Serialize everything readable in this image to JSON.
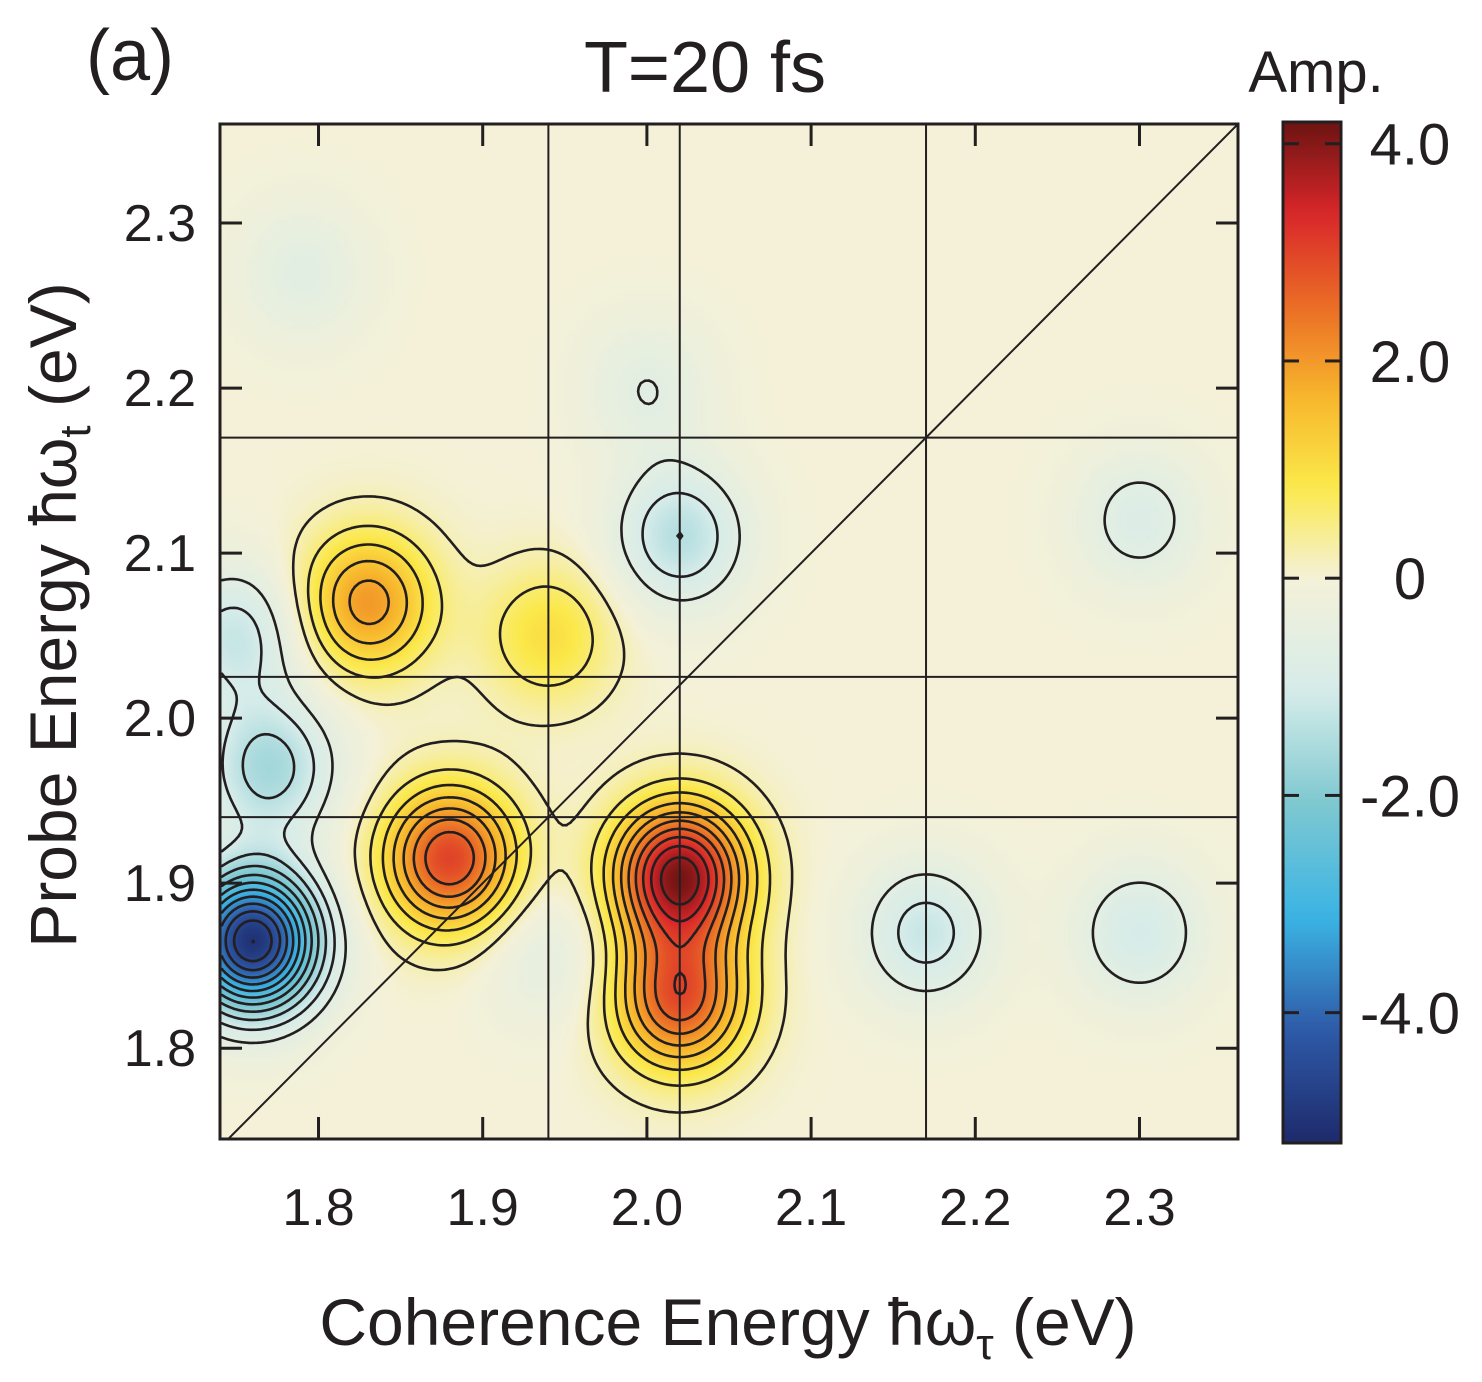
{
  "chart_data": {
    "type": "heatmap",
    "panel_label": "(a)",
    "title": "T=20 fs",
    "xlabel": "Coherence Energy ħω",
    "xlabel_sub": "τ",
    "xlabel_unit": " (eV)",
    "ylabel": "Probe Energy ħω",
    "ylabel_sub": "t",
    "ylabel_unit": " (eV)",
    "xlim": [
      1.74,
      2.36
    ],
    "ylim": [
      1.745,
      2.36
    ],
    "x_ticks": [
      1.8,
      1.9,
      2.0,
      2.1,
      2.2,
      2.3
    ],
    "x_tick_labels": [
      "1.8",
      "1.9",
      "2.0",
      "2.1",
      "2.2",
      "2.3"
    ],
    "y_ticks": [
      1.8,
      1.9,
      2.0,
      2.1,
      2.2,
      2.3
    ],
    "y_tick_labels": [
      "1.8",
      "1.9",
      "2.0",
      "2.1",
      "2.2",
      "2.3"
    ],
    "colorbar": {
      "label": "Amp.",
      "range": [
        -5.2,
        4.2
      ],
      "ticks": [
        4.0,
        2.0,
        0,
        -2.0,
        -4.0
      ],
      "tick_labels": [
        "4.0",
        "2.0",
        "0",
        "-2.0",
        "-4.0"
      ],
      "colormap": [
        "#1e2a6b",
        "#2e5aa8",
        "#3bb4e4",
        "#7ec8d0",
        "#d6ecea",
        "#f4f1d8",
        "#fbe94a",
        "#f7b52c",
        "#ea6b26",
        "#d9262a",
        "#6b1412"
      ]
    },
    "reference_lines": {
      "vertical": [
        1.94,
        2.02,
        2.17
      ],
      "horizontal": [
        1.94,
        2.025,
        2.17
      ],
      "diagonal": true
    },
    "peaks": [
      {
        "x": 2.02,
        "y": 1.905,
        "amplitude": 4.0
      },
      {
        "x": 1.88,
        "y": 1.915,
        "amplitude": 3.0
      },
      {
        "x": 2.02,
        "y": 1.83,
        "amplitude": 2.8
      },
      {
        "x": 1.83,
        "y": 2.07,
        "amplitude": 2.0
      },
      {
        "x": 1.94,
        "y": 2.05,
        "amplitude": 1.0
      },
      {
        "x": 1.76,
        "y": 1.865,
        "amplitude": -5.0
      },
      {
        "x": 1.77,
        "y": 1.97,
        "amplitude": -1.6
      },
      {
        "x": 1.75,
        "y": 2.05,
        "amplitude": -1.2
      },
      {
        "x": 1.94,
        "y": 1.855,
        "amplitude": -0.5
      },
      {
        "x": 2.02,
        "y": 2.11,
        "amplitude": -1.4
      },
      {
        "x": 2.17,
        "y": 1.87,
        "amplitude": -1.2
      },
      {
        "x": 2.3,
        "y": 1.87,
        "amplitude": -1.0
      },
      {
        "x": 2.3,
        "y": 2.12,
        "amplitude": -0.8
      },
      {
        "x": 1.79,
        "y": 2.27,
        "amplitude": -0.6
      },
      {
        "x": 2.0,
        "y": 2.2,
        "amplitude": -0.6
      }
    ]
  }
}
